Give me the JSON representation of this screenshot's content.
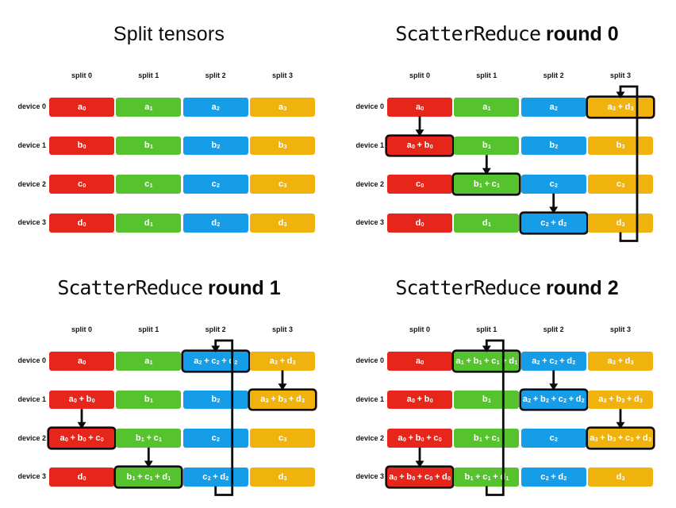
{
  "colors": {
    "split_fills": [
      "#e7261b",
      "#56c22d",
      "#169de8",
      "#f0b30d"
    ],
    "arrow": "#0a0a0a",
    "highlight_border": "#0c0c0c",
    "label_text": "#141414",
    "cell_text": "#ffffff",
    "background": "#ffffff"
  },
  "grid": {
    "column_headers": [
      "split 0",
      "split 1",
      "split 2",
      "split 3"
    ],
    "row_labels": [
      "device 0",
      "device 1",
      "device 2",
      "device 3"
    ]
  },
  "panels": [
    {
      "title_code": "",
      "title_main": "Split tensors",
      "cells": [
        [
          "a₀",
          "a₁",
          "a₂",
          "a₃"
        ],
        [
          "b₀",
          "b₁",
          "b₂",
          "b₃"
        ],
        [
          "c₀",
          "c₁",
          "c₂",
          "c₃"
        ],
        [
          "d₀",
          "d₁",
          "d₂",
          "d₃"
        ]
      ],
      "highlights": [],
      "arrows": []
    },
    {
      "title_code": "ScatterReduce",
      "title_main": "round 0",
      "cells": [
        [
          "a₀",
          "a₁",
          "a₂",
          "a₃ + d₃"
        ],
        [
          "a₀ + b₀",
          "b₁",
          "b₂",
          "b₃"
        ],
        [
          "c₀",
          "b₁ + c₁",
          "c₂",
          "c₃"
        ],
        [
          "d₀",
          "d₁",
          "c₂ + d₂",
          "d₃"
        ]
      ],
      "highlights": [
        [
          0,
          3
        ],
        [
          1,
          0
        ],
        [
          2,
          1
        ],
        [
          3,
          2
        ]
      ],
      "arrows": [
        {
          "type": "down",
          "col": 0,
          "row": 0
        },
        {
          "type": "down",
          "col": 1,
          "row": 1
        },
        {
          "type": "down",
          "col": 2,
          "row": 2
        },
        {
          "type": "wrap",
          "col": 3
        }
      ]
    },
    {
      "title_code": "ScatterReduce",
      "title_main": "round 1",
      "cells": [
        [
          "a₀",
          "a₁",
          "a₂ + c₂ + d₂",
          "a₃ + d₃"
        ],
        [
          "a₀ + b₀",
          "b₁",
          "b₂",
          "a₃ + b₃ + d₃"
        ],
        [
          "a₀ + b₀ + c₀",
          "b₁ + c₁",
          "c₂",
          "c₃"
        ],
        [
          "d₀",
          "b₁ + c₁ + d₁",
          "c₂ + d₂",
          "d₃"
        ]
      ],
      "highlights": [
        [
          0,
          2
        ],
        [
          1,
          3
        ],
        [
          2,
          0
        ],
        [
          3,
          1
        ]
      ],
      "arrows": [
        {
          "type": "down",
          "col": 3,
          "row": 0
        },
        {
          "type": "down",
          "col": 0,
          "row": 1
        },
        {
          "type": "down",
          "col": 1,
          "row": 2
        },
        {
          "type": "wrap",
          "col": 2
        }
      ]
    },
    {
      "title_code": "ScatterReduce",
      "title_main": "round 2",
      "cells": [
        [
          "a₀",
          "a₁ + b₁ + c₁ + d₁",
          "a₂ + c₂ + d₂",
          "a₃ + d₃"
        ],
        [
          "a₀ + b₀",
          "b₁",
          "a₂ + b₂ + c₂ + d₂",
          "a₃ + b₃ + d₃"
        ],
        [
          "a₀ + b₀ + c₀",
          "b₁ + c₁",
          "c₂",
          "a₃ + b₃ + c₃ + d₃"
        ],
        [
          "a₀ + b₀ + c₀ + d₀",
          "b₁ + c₁ + d₁",
          "c₂ + d₂",
          "d₃"
        ]
      ],
      "highlights": [
        [
          0,
          1
        ],
        [
          1,
          2
        ],
        [
          2,
          3
        ],
        [
          3,
          0
        ]
      ],
      "arrows": [
        {
          "type": "down",
          "col": 2,
          "row": 0
        },
        {
          "type": "down",
          "col": 3,
          "row": 1
        },
        {
          "type": "down",
          "col": 0,
          "row": 2
        },
        {
          "type": "wrap",
          "col": 1
        }
      ]
    }
  ]
}
